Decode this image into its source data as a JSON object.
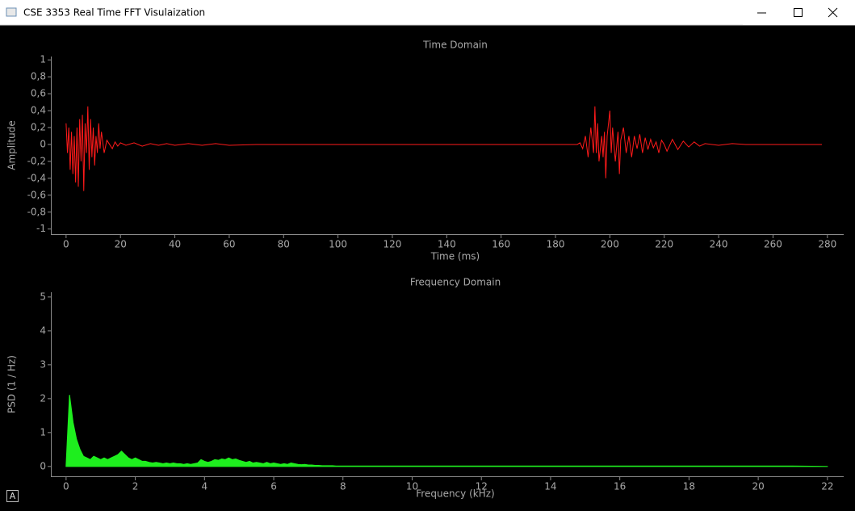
{
  "window": {
    "title": "CSE 3353 Real Time FFT Visulaization",
    "corner_badge": "A"
  },
  "chart_data": [
    {
      "type": "line",
      "title": "Time Domain",
      "x_label": "Time (ms)",
      "y_label": "Amplitude",
      "color": "#ff1a1a",
      "x": [
        0,
        0.5,
        1,
        1.5,
        2,
        2.5,
        3,
        3.5,
        4,
        4.5,
        5,
        5.5,
        6,
        6.5,
        7,
        7.5,
        8,
        8.5,
        9,
        9.5,
        10,
        10.5,
        11,
        11.5,
        12,
        12.5,
        13,
        14,
        15,
        16,
        17,
        18,
        19,
        20,
        22,
        25,
        28,
        31,
        34,
        37,
        40,
        45,
        50,
        55,
        60,
        70,
        80,
        100,
        120,
        140,
        160,
        180,
        188,
        189,
        190,
        191,
        192,
        193,
        194,
        194.5,
        195,
        195.5,
        196,
        197,
        197.5,
        198,
        198.5,
        199,
        200,
        200.5,
        201,
        202,
        203,
        203.5,
        204,
        205,
        206,
        207,
        208,
        209,
        210,
        211,
        212,
        213,
        214,
        215,
        216,
        217,
        218,
        219,
        220,
        221,
        223,
        225,
        227,
        229,
        231,
        233,
        235,
        240,
        245,
        250,
        260,
        270,
        278
      ],
      "values": [
        0.25,
        -0.1,
        0.2,
        -0.3,
        0.15,
        -0.35,
        0.1,
        -0.45,
        0.2,
        -0.5,
        0.3,
        -0.2,
        0.35,
        -0.55,
        0.25,
        -0.1,
        0.45,
        -0.3,
        0.3,
        -0.15,
        0.2,
        -0.25,
        0.1,
        -0.1,
        0.25,
        -0.05,
        0.15,
        -0.1,
        0.05,
        0,
        -0.05,
        0.03,
        -0.02,
        0.02,
        -0.01,
        0.02,
        -0.02,
        0.01,
        -0.01,
        0.01,
        -0.01,
        0.01,
        -0.01,
        0.01,
        -0.01,
        0,
        0,
        0,
        0,
        0,
        0,
        0,
        0,
        0.02,
        -0.05,
        0.1,
        -0.15,
        0.2,
        -0.1,
        0.45,
        -0.1,
        0.25,
        -0.2,
        0.1,
        -0.15,
        0.15,
        -0.4,
        0.1,
        0.4,
        -0.1,
        0.2,
        -0.2,
        0.15,
        -0.35,
        0.05,
        0.2,
        -0.1,
        0.1,
        -0.15,
        0.1,
        -0.05,
        0.12,
        -0.1,
        0.08,
        -0.06,
        0.06,
        -0.04,
        0.03,
        -0.1,
        0.05,
        0,
        -0.08,
        0.06,
        -0.06,
        0.04,
        -0.03,
        0.03,
        -0.02,
        0.01,
        -0.01,
        0.01,
        0,
        0,
        0,
        0
      ],
      "xlim": [
        -5.6,
        286
      ],
      "ylim": [
        -1.06,
        1.04
      ],
      "xticks": [
        0,
        20,
        40,
        60,
        80,
        100,
        120,
        140,
        160,
        180,
        200,
        220,
        240,
        260,
        280
      ],
      "yticks": [
        -1,
        {
          "value": -0.8,
          "label": "-0,8"
        },
        {
          "value": -0.6,
          "label": "-0,6"
        },
        {
          "value": -0.4,
          "label": "-0,4"
        },
        {
          "value": -0.2,
          "label": "-0,2"
        },
        0,
        {
          "value": 0.2,
          "label": "0,2"
        },
        {
          "value": 0.4,
          "label": "0,4"
        },
        {
          "value": 0.6,
          "label": "0,6"
        },
        {
          "value": 0.8,
          "label": "0,8"
        },
        1
      ]
    },
    {
      "type": "area",
      "title": "Frequency Domain",
      "x_label": "Frequency (kHz)",
      "y_label": "PSD (1 / Hz)",
      "color": "#1eee1e",
      "x": [
        0,
        0.1,
        0.2,
        0.3,
        0.4,
        0.5,
        0.6,
        0.7,
        0.8,
        0.9,
        1,
        1.1,
        1.2,
        1.3,
        1.4,
        1.5,
        1.6,
        1.7,
        1.8,
        1.9,
        2,
        2.1,
        2.2,
        2.3,
        2.4,
        2.5,
        2.6,
        2.7,
        2.8,
        2.9,
        3,
        3.1,
        3.2,
        3.3,
        3.4,
        3.5,
        3.6,
        3.7,
        3.8,
        3.9,
        4,
        4.1,
        4.2,
        4.3,
        4.4,
        4.5,
        4.6,
        4.7,
        4.8,
        4.9,
        5,
        5.1,
        5.2,
        5.3,
        5.4,
        5.5,
        5.6,
        5.7,
        5.8,
        5.9,
        6,
        6.1,
        6.2,
        6.3,
        6.4,
        6.5,
        6.6,
        6.7,
        6.8,
        6.9,
        7,
        7.1,
        7.2,
        7.3,
        7.4,
        7.5,
        7.6,
        7.7,
        7.8,
        7.9,
        8,
        9,
        10,
        11,
        12,
        13,
        14,
        15,
        16,
        17,
        18,
        19,
        20,
        21,
        22
      ],
      "values": [
        0,
        2.1,
        1.3,
        0.8,
        0.5,
        0.3,
        0.25,
        0.2,
        0.3,
        0.25,
        0.2,
        0.25,
        0.2,
        0.25,
        0.3,
        0.35,
        0.45,
        0.35,
        0.25,
        0.2,
        0.25,
        0.2,
        0.15,
        0.15,
        0.12,
        0.1,
        0.12,
        0.1,
        0.08,
        0.1,
        0.08,
        0.1,
        0.08,
        0.08,
        0.06,
        0.08,
        0.06,
        0.08,
        0.1,
        0.2,
        0.15,
        0.12,
        0.15,
        0.2,
        0.18,
        0.22,
        0.2,
        0.25,
        0.2,
        0.22,
        0.18,
        0.15,
        0.12,
        0.15,
        0.1,
        0.12,
        0.1,
        0.08,
        0.12,
        0.08,
        0.1,
        0.08,
        0.06,
        0.08,
        0.06,
        0.1,
        0.08,
        0.06,
        0.05,
        0.06,
        0.04,
        0.04,
        0.03,
        0.03,
        0.02,
        0.02,
        0.02,
        0.02,
        0.01,
        0.01,
        0.01,
        0.01,
        0.01,
        0.01,
        0.01,
        0.01,
        0.01,
        0.01,
        0.01,
        0.01,
        0.01,
        0.01,
        0.01,
        0.01,
        0
      ],
      "xlim": [
        -0.44,
        22.47
      ],
      "ylim": [
        -0.29,
        5.14
      ],
      "xticks": [
        0,
        2,
        4,
        6,
        8,
        10,
        12,
        14,
        16,
        18,
        20,
        22
      ],
      "yticks": [
        0,
        1,
        2,
        3,
        4,
        5
      ]
    }
  ]
}
